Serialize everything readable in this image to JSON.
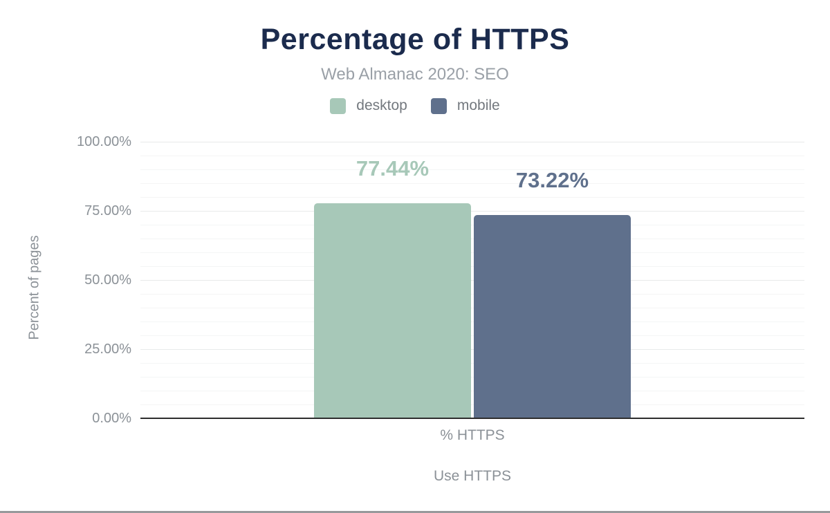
{
  "chart_data": {
    "type": "bar",
    "title": "Percentage of HTTPS",
    "subtitle": "Web Almanac 2020: SEO",
    "categories": [
      "% HTTPS"
    ],
    "series": [
      {
        "name": "desktop",
        "values": [
          77.44
        ],
        "value_labels": [
          "77.44%"
        ],
        "color": "#a7c8b8"
      },
      {
        "name": "mobile",
        "values": [
          73.22
        ],
        "value_labels": [
          "73.22%"
        ],
        "color": "#5f708c"
      }
    ],
    "xlabel": "Use HTTPS",
    "ylabel": "Percent of pages",
    "ylim": [
      0,
      100
    ],
    "yticks": [
      {
        "value": 0,
        "label": "0.00%"
      },
      {
        "value": 25,
        "label": "25.00%"
      },
      {
        "value": 50,
        "label": "50.00%"
      },
      {
        "value": 75,
        "label": "75.00%"
      },
      {
        "value": 100,
        "label": "100.00%"
      }
    ],
    "minor_grid_step": 5,
    "major_grid_step": 25,
    "grid": "on",
    "legend_position": "top",
    "axis_line_color": "#2d2d2d",
    "title_color": "#1b2b4d",
    "subtitle_color": "#9aa0a7",
    "tick_label_color": "#8b9197"
  }
}
